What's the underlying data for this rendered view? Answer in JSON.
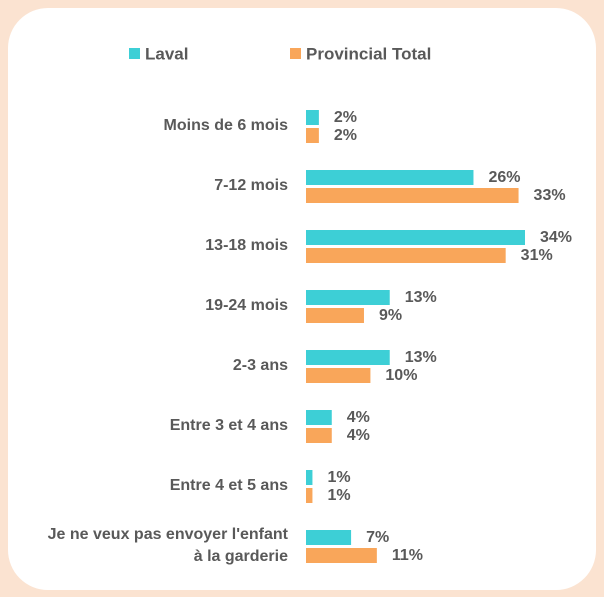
{
  "chart_data": {
    "type": "bar",
    "orientation": "horizontal",
    "categories": [
      "Moins de 6 mois",
      "7-12 mois",
      "13-18 mois",
      "19-24 mois",
      "2-3 ans",
      "Entre 3 et 4 ans",
      "Entre 4 et 5 ans",
      "Je ne veux pas envoyer l'enfant à la garderie"
    ],
    "series": [
      {
        "name": "Laval",
        "color": "#3dcfd6",
        "values": [
          2,
          26,
          34,
          13,
          13,
          4,
          1,
          7
        ],
        "value_labels": [
          "2%",
          "26%",
          "34%",
          "13%",
          "13%",
          "4%",
          "1%",
          "7%"
        ]
      },
      {
        "name": "Provincial Total",
        "color": "#f9a65a",
        "values": [
          2,
          33,
          31,
          9,
          10,
          4,
          1,
          11
        ],
        "value_labels": [
          "2%",
          "33%",
          "31%",
          "9%",
          "10%",
          "4%",
          "1%",
          "11%"
        ]
      }
    ],
    "legend": "top"
  }
}
